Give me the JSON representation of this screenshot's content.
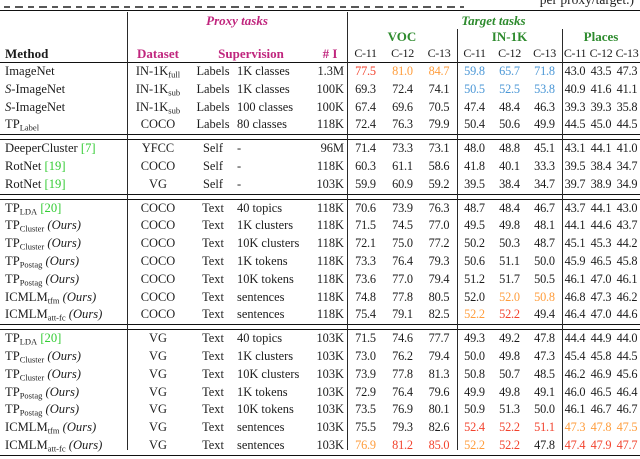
{
  "caption_tail": "per proxy/target.)",
  "labels": {
    "ours": "(Ours)"
  },
  "header": {
    "proxy_label": "Proxy tasks",
    "target_label": "Target tasks",
    "method": "Method",
    "dataset": "Dataset",
    "supervision": "Supervision",
    "num_images": "# I",
    "groups": [
      "VOC",
      "IN-1K",
      "Places"
    ],
    "subcols": [
      "C-11",
      "C-12",
      "C-13"
    ]
  },
  "colors": {
    "black": "#1c1c1c",
    "magenta": "#c0267e",
    "green_header": "#2e8b2e",
    "green_cite": "#33cc33",
    "red": "#f2432e",
    "orange": "#ff9d3c",
    "blue": "#4b97d6"
  },
  "sections": [
    {
      "rows": [
        {
          "method": {
            "name": "ImageNet"
          },
          "dataset": {
            "base": "IN-1K",
            "sub": "full"
          },
          "sup_type": "Labels",
          "sup_detail": "1K classes",
          "ni": "1.3M",
          "values": [
            "77.5",
            "81.0",
            "84.7",
            "59.8",
            "65.7",
            "71.8",
            "43.0",
            "43.5",
            "47.3"
          ],
          "vcolors": [
            "r",
            "o",
            "o",
            "b",
            "b",
            "b",
            "k",
            "k",
            "k"
          ]
        },
        {
          "method": {
            "cal": "S",
            "name": "-ImageNet"
          },
          "dataset": {
            "base": "IN-1K",
            "sub": "sub"
          },
          "sup_type": "Labels",
          "sup_detail": "1K classes",
          "ni": "100K",
          "values": [
            "69.3",
            "72.4",
            "74.1",
            "50.5",
            "52.5",
            "53.8",
            "40.9",
            "41.6",
            "41.1"
          ],
          "vcolors": [
            "k",
            "k",
            "k",
            "b",
            "b",
            "b",
            "k",
            "k",
            "k"
          ]
        },
        {
          "method": {
            "cal": "S",
            "name": "-ImageNet"
          },
          "dataset": {
            "base": "IN-1K",
            "sub": "sub"
          },
          "sup_type": "Labels",
          "sup_detail": "100 classes",
          "ni": "100K",
          "values": [
            "67.4",
            "69.6",
            "70.5",
            "47.4",
            "48.4",
            "46.3",
            "39.3",
            "39.3",
            "35.8"
          ]
        },
        {
          "method": {
            "name": "TP",
            "sub": "Label"
          },
          "dataset": {
            "base": "COCO"
          },
          "sup_type": "Labels",
          "sup_detail": "80 classes",
          "ni": "118K",
          "values": [
            "72.4",
            "76.3",
            "79.9",
            "50.4",
            "50.6",
            "49.9",
            "44.5",
            "45.0",
            "44.5"
          ]
        }
      ]
    },
    {
      "rows": [
        {
          "method": {
            "name": "DeeperCluster",
            "cite": "[7]"
          },
          "dataset": {
            "base": "YFCC"
          },
          "sup_type": "Self",
          "sup_detail": "-",
          "ni": "96M",
          "values": [
            "71.4",
            "73.3",
            "73.1",
            "48.0",
            "48.8",
            "45.1",
            "43.1",
            "44.1",
            "41.0"
          ]
        },
        {
          "method": {
            "name": "RotNet",
            "cite": "[19]"
          },
          "dataset": {
            "base": "COCO"
          },
          "sup_type": "Self",
          "sup_detail": "-",
          "ni": "118K",
          "values": [
            "60.3",
            "61.1",
            "58.6",
            "41.8",
            "40.1",
            "33.3",
            "39.5",
            "38.4",
            "34.7"
          ]
        },
        {
          "method": {
            "name": "RotNet",
            "cite": "[19]"
          },
          "dataset": {
            "base": "VG"
          },
          "sup_type": "Self",
          "sup_detail": "-",
          "ni": "103K",
          "values": [
            "59.9",
            "60.9",
            "59.2",
            "39.5",
            "38.4",
            "34.7",
            "39.7",
            "38.9",
            "34.9"
          ]
        }
      ]
    },
    {
      "rows": [
        {
          "method": {
            "name": "TP",
            "sub": "LDA",
            "cite": "[20]"
          },
          "dataset": {
            "base": "COCO"
          },
          "sup_type": "Text",
          "sup_detail": "40 topics",
          "ni": "118K",
          "values": [
            "70.6",
            "73.9",
            "76.3",
            "48.7",
            "48.4",
            "46.7",
            "43.7",
            "44.1",
            "43.0"
          ]
        },
        {
          "method": {
            "name": "TP",
            "sub": "Cluster",
            "ours": true
          },
          "dataset": {
            "base": "COCO"
          },
          "sup_type": "Text",
          "sup_detail": "1K clusters",
          "ni": "118K",
          "values": [
            "71.5",
            "74.5",
            "77.0",
            "49.5",
            "49.8",
            "48.1",
            "44.1",
            "44.6",
            "43.7"
          ]
        },
        {
          "method": {
            "name": "TP",
            "sub": "Cluster",
            "ours": true
          },
          "dataset": {
            "base": "COCO"
          },
          "sup_type": "Text",
          "sup_detail": "10K clusters",
          "ni": "118K",
          "values": [
            "72.1",
            "75.0",
            "77.2",
            "50.2",
            "50.3",
            "48.7",
            "45.1",
            "45.3",
            "44.2"
          ]
        },
        {
          "method": {
            "name": "TP",
            "sub": "Postag",
            "ours": true
          },
          "dataset": {
            "base": "COCO"
          },
          "sup_type": "Text",
          "sup_detail": "1K tokens",
          "ni": "118K",
          "values": [
            "73.3",
            "76.4",
            "79.3",
            "50.6",
            "51.1",
            "50.0",
            "45.9",
            "46.5",
            "45.8"
          ]
        },
        {
          "method": {
            "name": "TP",
            "sub": "Postag",
            "ours": true
          },
          "dataset": {
            "base": "COCO"
          },
          "sup_type": "Text",
          "sup_detail": "10K tokens",
          "ni": "118K",
          "values": [
            "73.6",
            "77.0",
            "79.4",
            "51.2",
            "51.7",
            "50.5",
            "46.1",
            "47.0",
            "46.1"
          ]
        },
        {
          "method": {
            "name": "ICMLM",
            "sub": "tfm",
            "ours": true
          },
          "dataset": {
            "base": "COCO"
          },
          "sup_type": "Text",
          "sup_detail": "sentences",
          "ni": "118K",
          "values": [
            "74.8",
            "77.8",
            "80.5",
            "52.0",
            "52.0",
            "50.8",
            "46.8",
            "47.3",
            "46.2"
          ],
          "vcolors": [
            "k",
            "k",
            "k",
            "k",
            "o",
            "o",
            "k",
            "k",
            "k"
          ]
        },
        {
          "method": {
            "name": "ICMLM",
            "sub": "att-fc",
            "ours": true
          },
          "dataset": {
            "base": "COCO"
          },
          "sup_type": "Text",
          "sup_detail": "sentences",
          "ni": "118K",
          "values": [
            "75.4",
            "79.1",
            "82.5",
            "52.2",
            "52.2",
            "49.4",
            "46.4",
            "47.0",
            "44.6"
          ],
          "vcolors": [
            "k",
            "k",
            "k",
            "o",
            "r",
            "k",
            "k",
            "k",
            "k"
          ]
        }
      ]
    },
    {
      "rows": [
        {
          "method": {
            "name": "TP",
            "sub": "LDA",
            "cite": "[20]"
          },
          "dataset": {
            "base": "VG"
          },
          "sup_type": "Text",
          "sup_detail": "40 topics",
          "ni": "103K",
          "values": [
            "71.5",
            "74.6",
            "77.7",
            "49.3",
            "49.2",
            "47.8",
            "44.4",
            "44.9",
            "44.0"
          ]
        },
        {
          "method": {
            "name": "TP",
            "sub": "Cluster",
            "ours": true
          },
          "dataset": {
            "base": "VG"
          },
          "sup_type": "Text",
          "sup_detail": "1K clusters",
          "ni": "103K",
          "values": [
            "73.0",
            "76.2",
            "79.4",
            "50.0",
            "49.8",
            "47.3",
            "45.4",
            "45.8",
            "44.5"
          ]
        },
        {
          "method": {
            "name": "TP",
            "sub": "Cluster",
            "ours": true
          },
          "dataset": {
            "base": "VG"
          },
          "sup_type": "Text",
          "sup_detail": "10K clusters",
          "ni": "103K",
          "values": [
            "73.9",
            "77.8",
            "81.3",
            "50.8",
            "50.7",
            "48.5",
            "46.2",
            "46.9",
            "45.6"
          ]
        },
        {
          "method": {
            "name": "TP",
            "sub": "Postag",
            "ours": true
          },
          "dataset": {
            "base": "VG"
          },
          "sup_type": "Text",
          "sup_detail": "1K tokens",
          "ni": "103K",
          "values": [
            "72.9",
            "76.4",
            "79.6",
            "49.9",
            "49.8",
            "49.1",
            "46.0",
            "46.5",
            "46.4"
          ]
        },
        {
          "method": {
            "name": "TP",
            "sub": "Postag",
            "ours": true
          },
          "dataset": {
            "base": "VG"
          },
          "sup_type": "Text",
          "sup_detail": "10K tokens",
          "ni": "103K",
          "values": [
            "73.5",
            "76.9",
            "80.1",
            "50.9",
            "51.3",
            "50.0",
            "46.1",
            "46.7",
            "46.7"
          ]
        },
        {
          "method": {
            "name": "ICMLM",
            "sub": "tfm",
            "ours": true
          },
          "dataset": {
            "base": "VG"
          },
          "sup_type": "Text",
          "sup_detail": "sentences",
          "ni": "103K",
          "values": [
            "75.5",
            "79.3",
            "82.6",
            "52.4",
            "52.2",
            "51.1",
            "47.3",
            "47.8",
            "47.5"
          ],
          "vcolors": [
            "k",
            "k",
            "k",
            "r",
            "r",
            "r",
            "o",
            "o",
            "o"
          ]
        },
        {
          "method": {
            "name": "ICMLM",
            "sub": "att-fc",
            "ours": true
          },
          "dataset": {
            "base": "VG"
          },
          "sup_type": "Text",
          "sup_detail": "sentences",
          "ni": "103K",
          "values": [
            "76.9",
            "81.2",
            "85.0",
            "52.2",
            "52.2",
            "47.8",
            "47.4",
            "47.9",
            "47.7"
          ],
          "vcolors": [
            "o",
            "r",
            "r",
            "o",
            "r",
            "k",
            "r",
            "r",
            "r"
          ]
        }
      ]
    }
  ]
}
